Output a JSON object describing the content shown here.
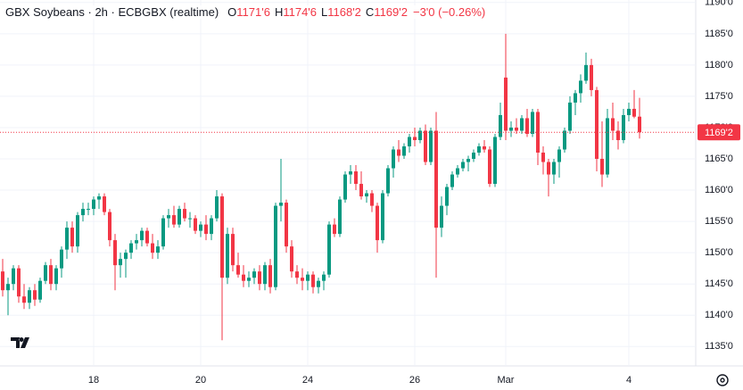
{
  "chart_data": {
    "type": "candlestick",
    "title": "GBX Soybeans · 2h · ECBGBX (realtime)",
    "legend_ohlc": [
      {
        "key": "O",
        "value": "1171'6"
      },
      {
        "key": "H",
        "value": "1174'6"
      },
      {
        "key": "L",
        "value": "1168'2"
      },
      {
        "key": "C",
        "value": "1169'2"
      }
    ],
    "change": "−3'0 (−0.26%)",
    "up_color": "#089981",
    "down_color": "#f23645",
    "grid": true,
    "ylim": [
      1131.9,
      1190.4
    ],
    "yticks": [
      {
        "value": 1135,
        "label": "1135'0"
      },
      {
        "value": 1140,
        "label": "1140'0"
      },
      {
        "value": 1145,
        "label": "1145'0"
      },
      {
        "value": 1150,
        "label": "1150'0"
      },
      {
        "value": 1155,
        "label": "1155'0"
      },
      {
        "value": 1160,
        "label": "1160'0"
      },
      {
        "value": 1165,
        "label": "1165'0"
      },
      {
        "value": 1170,
        "label": "1170'0"
      },
      {
        "value": 1175,
        "label": "1175'0"
      },
      {
        "value": 1180,
        "label": "1180'0"
      },
      {
        "value": 1185,
        "label": "1185'0"
      },
      {
        "value": 1190,
        "label": "1190'0"
      }
    ],
    "last_price": {
      "value": 1169.25,
      "label": "1169'2"
    },
    "categories": [
      null,
      null,
      null,
      null,
      null,
      null,
      null,
      null,
      null,
      null,
      null,
      null,
      null,
      null,
      null,
      null,
      null,
      "18",
      null,
      null,
      null,
      null,
      null,
      null,
      null,
      null,
      null,
      null,
      null,
      null,
      null,
      null,
      null,
      null,
      null,
      null,
      null,
      "20",
      null,
      null,
      null,
      null,
      null,
      null,
      null,
      null,
      null,
      null,
      null,
      null,
      null,
      null,
      null,
      null,
      null,
      null,
      null,
      "24",
      null,
      null,
      null,
      null,
      null,
      null,
      null,
      null,
      null,
      null,
      null,
      null,
      null,
      null,
      null,
      null,
      null,
      null,
      null,
      "26",
      null,
      null,
      null,
      null,
      null,
      null,
      null,
      null,
      null,
      null,
      null,
      null,
      null,
      null,
      null,
      null,
      "Mar",
      null,
      null,
      null,
      null,
      null,
      null,
      null,
      null,
      null,
      null,
      null,
      null,
      null,
      null,
      null,
      null,
      null,
      null,
      null,
      null,
      null,
      null,
      "4",
      null,
      null
    ],
    "ohlc": [
      [
        1147,
        1149,
        1143,
        1144
      ],
      [
        1144,
        1146,
        1140,
        1145
      ],
      [
        1145,
        1148,
        1144,
        1147.5
      ],
      [
        1147.5,
        1148,
        1142,
        1143
      ],
      [
        1143,
        1145,
        1141,
        1142
      ],
      [
        1142,
        1144.5,
        1141,
        1144
      ],
      [
        1144,
        1145,
        1141.5,
        1142.5
      ],
      [
        1142.5,
        1146,
        1142,
        1145.5
      ],
      [
        1145.5,
        1148.5,
        1145,
        1148
      ],
      [
        1148,
        1149,
        1144,
        1145
      ],
      [
        1145,
        1148,
        1144,
        1147.5
      ],
      [
        1147.5,
        1151,
        1146,
        1150.5
      ],
      [
        1150.5,
        1155,
        1149,
        1154
      ],
      [
        1154,
        1155,
        1150,
        1151
      ],
      [
        1151,
        1156.5,
        1150,
        1156
      ],
      [
        1156,
        1158,
        1155,
        1157
      ],
      [
        1157,
        1158,
        1156,
        1157
      ],
      [
        1157,
        1159,
        1156,
        1158.5
      ],
      [
        1158.5,
        1159.5,
        1157,
        1159
      ],
      [
        1159,
        1159.5,
        1156,
        1156.5
      ],
      [
        1156.5,
        1157,
        1151,
        1152
      ],
      [
        1152,
        1153,
        1144,
        1148
      ],
      [
        1148,
        1150,
        1146,
        1149
      ],
      [
        1149,
        1150.5,
        1146,
        1150
      ],
      [
        1150,
        1152,
        1149,
        1151.5
      ],
      [
        1151.5,
        1153,
        1150.5,
        1152
      ],
      [
        1152,
        1154,
        1151,
        1153.5
      ],
      [
        1153.5,
        1154,
        1151,
        1151.5
      ],
      [
        1151.5,
        1153,
        1149,
        1150
      ],
      [
        1150,
        1152,
        1149,
        1151
      ],
      [
        1151,
        1156,
        1150.5,
        1155.5
      ],
      [
        1155.5,
        1157,
        1154,
        1156
      ],
      [
        1156,
        1157.5,
        1154,
        1154.5
      ],
      [
        1154.5,
        1157.5,
        1154,
        1157
      ],
      [
        1157,
        1158,
        1155,
        1155.5
      ],
      [
        1155.5,
        1156.5,
        1154,
        1155.5
      ],
      [
        1155.5,
        1156,
        1153,
        1153.5
      ],
      [
        1153.5,
        1155,
        1152.5,
        1154.5
      ],
      [
        1154.5,
        1156,
        1152,
        1153
      ],
      [
        1153,
        1156,
        1152,
        1155.5
      ],
      [
        1155.5,
        1160,
        1155,
        1159
      ],
      [
        1159,
        1159.5,
        1136,
        1146
      ],
      [
        1146,
        1154,
        1145,
        1153
      ],
      [
        1153,
        1154,
        1147,
        1148
      ],
      [
        1148,
        1150,
        1146,
        1146.5
      ],
      [
        1146.5,
        1148,
        1144.5,
        1145.5
      ],
      [
        1145.5,
        1147,
        1144.5,
        1146
      ],
      [
        1146,
        1147.5,
        1145,
        1147
      ],
      [
        1147,
        1148,
        1144,
        1145
      ],
      [
        1145,
        1148.5,
        1144,
        1148
      ],
      [
        1148,
        1149,
        1143.5,
        1144.5
      ],
      [
        1144.5,
        1158,
        1144,
        1157.5
      ],
      [
        1157.5,
        1165,
        1155,
        1158
      ],
      [
        1158,
        1158.5,
        1150,
        1151
      ],
      [
        1151,
        1152,
        1146,
        1147
      ],
      [
        1147,
        1148,
        1145,
        1146
      ],
      [
        1146,
        1147.5,
        1144,
        1145.5
      ],
      [
        1145.5,
        1147,
        1144,
        1146.5
      ],
      [
        1146.5,
        1147,
        1143.5,
        1144.5
      ],
      [
        1144.5,
        1146,
        1143.5,
        1145.5
      ],
      [
        1145.5,
        1147,
        1144,
        1146.5
      ],
      [
        1146.5,
        1155,
        1146,
        1154.5
      ],
      [
        1154.5,
        1155.5,
        1152.5,
        1153
      ],
      [
        1153,
        1159,
        1152.5,
        1158.5
      ],
      [
        1158.5,
        1163,
        1158,
        1162.5
      ],
      [
        1162.5,
        1164,
        1161,
        1163
      ],
      [
        1163,
        1164,
        1160,
        1161
      ],
      [
        1161,
        1163,
        1158.5,
        1159
      ],
      [
        1159,
        1160,
        1158,
        1159.5
      ],
      [
        1159.5,
        1160,
        1156.5,
        1157.5
      ],
      [
        1157.5,
        1158,
        1150,
        1152
      ],
      [
        1152,
        1160,
        1151.5,
        1159.5
      ],
      [
        1159.5,
        1164,
        1159,
        1163.5
      ],
      [
        1163.5,
        1167,
        1162,
        1166.5
      ],
      [
        1166.5,
        1168,
        1164.5,
        1165.5
      ],
      [
        1165.5,
        1167.5,
        1165,
        1167
      ],
      [
        1167,
        1169,
        1166,
        1168.5
      ],
      [
        1168.5,
        1170,
        1167,
        1168
      ],
      [
        1168,
        1170,
        1167.5,
        1169.5
      ],
      [
        1169.5,
        1170.5,
        1164,
        1164.5
      ],
      [
        1164.5,
        1170,
        1164,
        1169.5
      ],
      [
        1169.5,
        1172.5,
        1146,
        1154
      ],
      [
        1154,
        1159,
        1152.5,
        1157.5
      ],
      [
        1157.5,
        1161,
        1156,
        1160.5
      ],
      [
        1160.5,
        1163,
        1160,
        1162.5
      ],
      [
        1162.5,
        1164,
        1162,
        1163.5
      ],
      [
        1163.5,
        1165,
        1163,
        1164.5
      ],
      [
        1164.5,
        1165.5,
        1163,
        1165
      ],
      [
        1165,
        1166.5,
        1164.5,
        1166
      ],
      [
        1166,
        1167.5,
        1165.5,
        1167
      ],
      [
        1167,
        1168,
        1166,
        1166.5
      ],
      [
        1166.5,
        1167,
        1160.5,
        1161
      ],
      [
        1161,
        1169,
        1160.5,
        1168.5
      ],
      [
        1168.5,
        1174,
        1168,
        1172
      ],
      [
        1178,
        1185,
        1168,
        1169.5
      ],
      [
        1169.5,
        1171,
        1168.5,
        1170
      ],
      [
        1170,
        1171.5,
        1169,
        1169.5
      ],
      [
        1169.5,
        1172,
        1169,
        1171.5
      ],
      [
        1171.5,
        1173,
        1168.5,
        1169
      ],
      [
        1169,
        1173,
        1168.5,
        1172.5
      ],
      [
        1172.5,
        1173,
        1164,
        1166
      ],
      [
        1166,
        1167,
        1162.5,
        1164.5
      ],
      [
        1164.5,
        1165,
        1159,
        1162.5
      ],
      [
        1162.5,
        1165,
        1161,
        1164.5
      ],
      [
        1164.5,
        1167,
        1162,
        1166.5
      ],
      [
        1166.5,
        1170,
        1166,
        1169.5
      ],
      [
        1169.5,
        1175,
        1169,
        1174
      ],
      [
        1174,
        1176,
        1172,
        1175.5
      ],
      [
        1175.5,
        1178.5,
        1174,
        1177.5
      ],
      [
        1177.5,
        1182,
        1177,
        1180
      ],
      [
        1180,
        1181,
        1175,
        1176
      ],
      [
        1176,
        1176.5,
        1163,
        1165
      ],
      [
        1165,
        1171,
        1160.5,
        1162.5
      ],
      [
        1162.5,
        1173,
        1162,
        1171.5
      ],
      [
        1171.5,
        1174,
        1168,
        1169.5
      ],
      [
        1169.5,
        1171,
        1166.5,
        1168
      ],
      [
        1168,
        1173,
        1167.5,
        1172
      ],
      [
        1172,
        1174,
        1171,
        1173
      ],
      [
        1173,
        1176,
        1171.5,
        1171.75
      ],
      [
        1171.75,
        1174.75,
        1168.25,
        1169.25
      ]
    ]
  }
}
